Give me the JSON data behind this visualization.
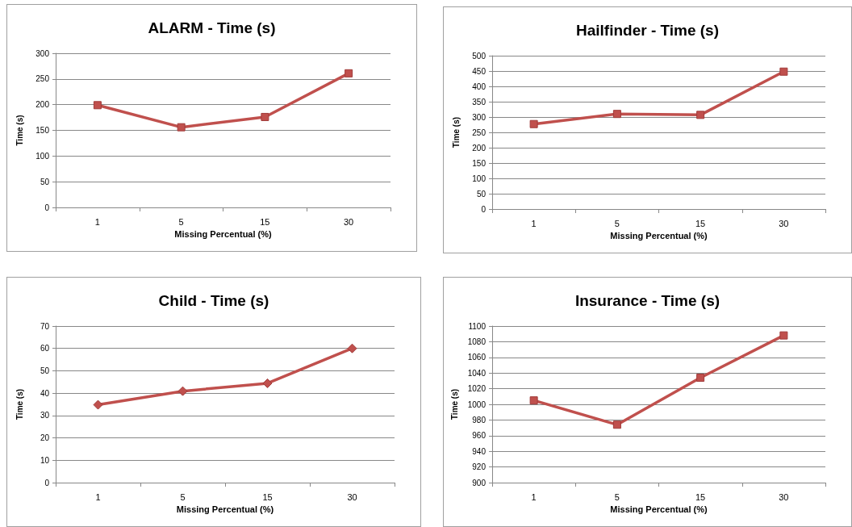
{
  "chart_data": [
    {
      "type": "line",
      "title": "ALARM - Time (s)",
      "xlabel": "Missing Percentual (%)",
      "ylabel": "Time (s)",
      "categories": [
        "1",
        "5",
        "15",
        "30"
      ],
      "series": [
        {
          "color": "#c0504d",
          "values": [
            199,
            156,
            176,
            261
          ]
        }
      ],
      "ylim": [
        0,
        300
      ],
      "yticks": [
        0,
        50,
        100,
        150,
        200,
        250,
        300
      ],
      "grid": "y",
      "marker": "square"
    },
    {
      "type": "line",
      "title": "Hailfinder - Time (s)",
      "xlabel": "Missing Percentual (%)",
      "ylabel": "Time (s)",
      "categories": [
        "1",
        "5",
        "15",
        "30"
      ],
      "series": [
        {
          "color": "#c0504d",
          "values": [
            277,
            310,
            307,
            448
          ]
        }
      ],
      "ylim": [
        0,
        500
      ],
      "yticks": [
        0,
        50,
        100,
        150,
        200,
        250,
        300,
        350,
        400,
        450,
        500
      ],
      "grid": "y",
      "marker": "square"
    },
    {
      "type": "line",
      "title": "Child - Time (s)",
      "xlabel": "Missing Percentual (%)",
      "ylabel": "Time (s)",
      "categories": [
        "1",
        "5",
        "15",
        "30"
      ],
      "series": [
        {
          "color": "#c0504d",
          "values": [
            34.8,
            40.9,
            44.4,
            60
          ]
        }
      ],
      "ylim": [
        0,
        70
      ],
      "yticks": [
        0,
        10,
        20,
        30,
        40,
        50,
        60,
        70
      ],
      "grid": "y",
      "marker": "diamond"
    },
    {
      "type": "line",
      "title": "Insurance - Time (s)",
      "xlabel": "Missing Percentual (%)",
      "ylabel": "Time (s)",
      "categories": [
        "1",
        "5",
        "15",
        "30"
      ],
      "series": [
        {
          "color": "#c0504d",
          "values": [
            1005,
            974,
            1034,
            1088
          ]
        }
      ],
      "ylim": [
        900,
        1100
      ],
      "yticks": [
        900,
        920,
        940,
        960,
        980,
        1000,
        1020,
        1040,
        1060,
        1080,
        1100
      ],
      "grid": "y",
      "marker": "square"
    }
  ]
}
